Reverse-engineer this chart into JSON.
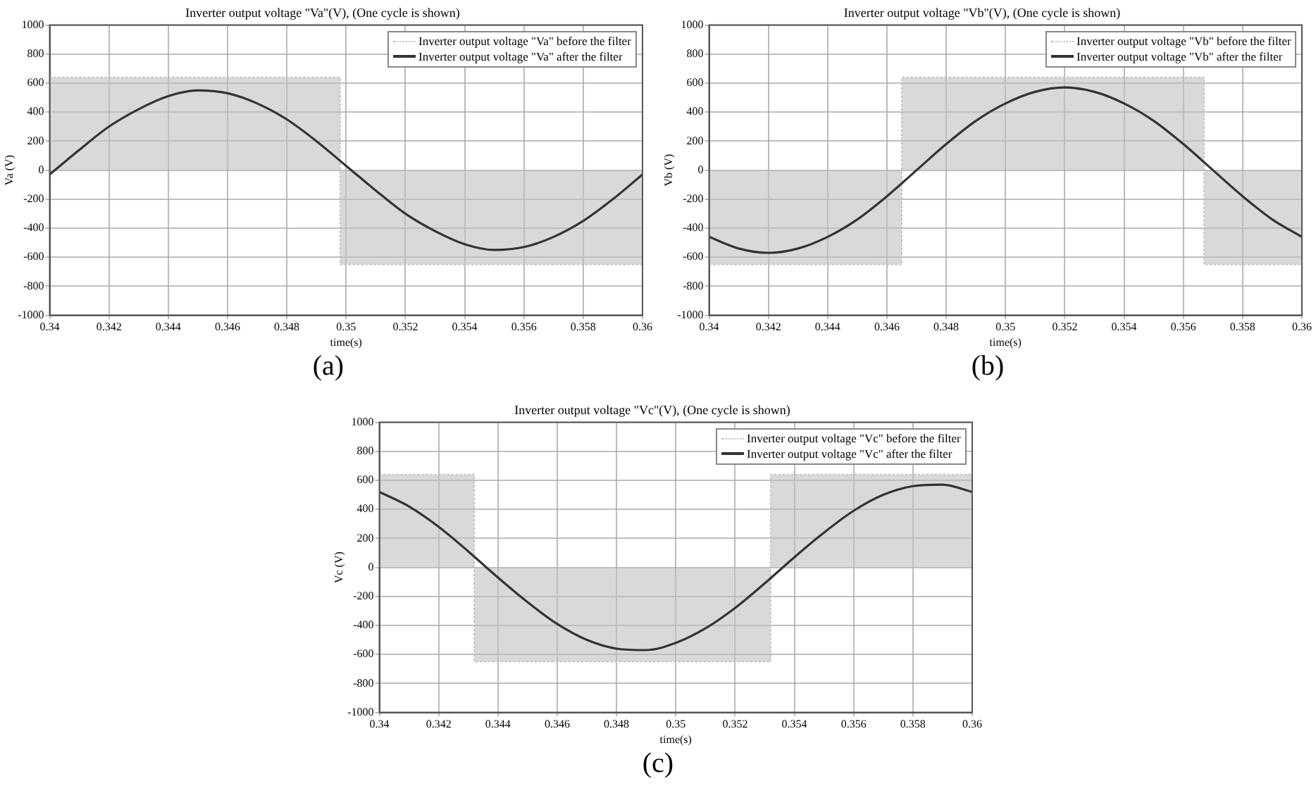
{
  "chart_data": [
    {
      "type": "line",
      "title": "Inverter output voltage \"Va\"(V), (One cycle is shown)",
      "xlabel": "time(s)",
      "ylabel": "Va (V)",
      "annotations": [
        "(a)"
      ],
      "xlim": [
        0.34,
        0.36
      ],
      "xticks": [
        0.34,
        0.342,
        0.344,
        0.346,
        0.348,
        0.35,
        0.352,
        0.354,
        0.356,
        0.358,
        0.36
      ],
      "ylim": [
        -1000,
        1000
      ],
      "yticks": [
        -1000,
        -800,
        -600,
        -400,
        -200,
        0,
        200,
        400,
        600,
        800,
        1000
      ],
      "grid": true,
      "legend": "top right",
      "series": [
        {
          "name": "Inverter output voltage \"Va\" before the filter",
          "type": "area",
          "line_style": "dotted",
          "color": "#c0c0c0",
          "x": [
            0.34,
            0.3498,
            0.3498,
            0.36
          ],
          "values": [
            640,
            640,
            -650,
            -650
          ]
        },
        {
          "name": "Inverter output voltage \"Va\" after the filter",
          "type": "line",
          "line_style": "solid",
          "color": "#333333",
          "x": [
            0.34,
            0.341,
            0.342,
            0.343,
            0.344,
            0.345,
            0.346,
            0.347,
            0.348,
            0.349,
            0.35,
            0.351,
            0.352,
            0.353,
            0.354,
            0.355,
            0.356,
            0.357,
            0.358,
            0.359,
            0.36
          ],
          "values": [
            -30,
            140,
            300,
            420,
            510,
            550,
            530,
            460,
            350,
            200,
            30,
            -140,
            -300,
            -420,
            -510,
            -550,
            -530,
            -460,
            -350,
            -200,
            -30
          ]
        }
      ]
    },
    {
      "type": "line",
      "title": "Inverter output voltage \"Vb\"(V), (One cycle is shown)",
      "xlabel": "time(s)",
      "ylabel": "Vb (V)",
      "annotations": [
        "(b)"
      ],
      "xlim": [
        0.34,
        0.36
      ],
      "xticks": [
        0.34,
        0.342,
        0.344,
        0.346,
        0.348,
        0.35,
        0.352,
        0.354,
        0.356,
        0.358,
        0.36
      ],
      "ylim": [
        -1000,
        1000
      ],
      "yticks": [
        -1000,
        -800,
        -600,
        -400,
        -200,
        0,
        200,
        400,
        600,
        800,
        1000
      ],
      "grid": true,
      "legend": "top right",
      "series": [
        {
          "name": "Inverter output voltage \"Vb\" before the filter",
          "type": "area",
          "line_style": "dotted",
          "color": "#c0c0c0",
          "x": [
            0.34,
            0.3465,
            0.3465,
            0.3567,
            0.3567,
            0.36
          ],
          "values": [
            -650,
            -650,
            640,
            640,
            -650,
            -650
          ]
        },
        {
          "name": "Inverter output voltage \"Vb\" after the filter",
          "type": "line",
          "line_style": "solid",
          "color": "#333333",
          "x": [
            0.34,
            0.341,
            0.342,
            0.343,
            0.344,
            0.345,
            0.346,
            0.347,
            0.348,
            0.349,
            0.35,
            0.351,
            0.352,
            0.353,
            0.354,
            0.355,
            0.356,
            0.357,
            0.358,
            0.359,
            0.36
          ],
          "values": [
            -460,
            -540,
            -570,
            -540,
            -460,
            -340,
            -180,
            0,
            180,
            340,
            460,
            540,
            570,
            540,
            460,
            340,
            180,
            0,
            -180,
            -340,
            -460
          ]
        }
      ]
    },
    {
      "type": "line",
      "title": "Inverter output voltage \"Vc\"(V), (One cycle is shown)",
      "xlabel": "time(s)",
      "ylabel": "Vc (V)",
      "annotations": [
        "(c)"
      ],
      "xlim": [
        0.34,
        0.36
      ],
      "xticks": [
        0.34,
        0.342,
        0.344,
        0.346,
        0.348,
        0.35,
        0.352,
        0.354,
        0.356,
        0.358,
        0.36
      ],
      "ylim": [
        -1000,
        1000
      ],
      "yticks": [
        -1000,
        -800,
        -600,
        -400,
        -200,
        0,
        200,
        400,
        600,
        800,
        1000
      ],
      "grid": true,
      "legend": "top right",
      "series": [
        {
          "name": "Inverter output voltage \"Vc\" before the filter",
          "type": "area",
          "line_style": "dotted",
          "color": "#c0c0c0",
          "x": [
            0.34,
            0.3432,
            0.3432,
            0.3532,
            0.3532,
            0.36
          ],
          "values": [
            640,
            640,
            -650,
            -650,
            640,
            640
          ]
        },
        {
          "name": "Inverter output voltage \"Vc\" after the filter",
          "type": "line",
          "line_style": "solid",
          "color": "#333333",
          "x": [
            0.34,
            0.341,
            0.342,
            0.343,
            0.344,
            0.345,
            0.346,
            0.347,
            0.348,
            0.349,
            0.35,
            0.351,
            0.352,
            0.353,
            0.354,
            0.355,
            0.356,
            0.357,
            0.358,
            0.359,
            0.36
          ],
          "values": [
            520,
            420,
            280,
            110,
            -70,
            -240,
            -390,
            -500,
            -560,
            -570,
            -520,
            -420,
            -280,
            -110,
            70,
            240,
            390,
            500,
            560,
            570,
            520
          ]
        }
      ]
    }
  ]
}
